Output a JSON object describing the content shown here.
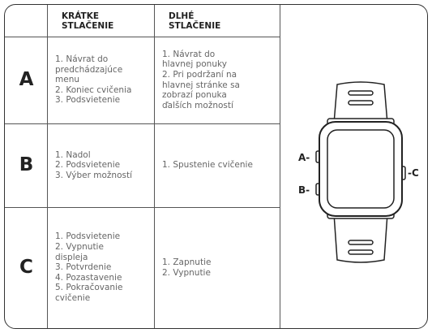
{
  "table": {
    "headers": [
      [
        "KRÁTKE",
        "STLAČENIE"
      ],
      [
        "DLHÉ",
        "STLAČENIE"
      ]
    ],
    "rows": [
      {
        "label": "A",
        "short": [
          "1. Návrat do",
          "predchádzajúce",
          "menu",
          "2. Koniec cvičenia",
          "3. Podsvietenie"
        ],
        "long": [
          "1. Návrat do",
          "hlavnej ponuky",
          "2. Pri podržaní na",
          "hlavnej stránke sa",
          "zobrazí ponuka",
          "ďalších možností"
        ]
      },
      {
        "label": "B",
        "short": [
          "1. Nadol",
          "2. Podsvietenie",
          "3. Výber možností"
        ],
        "long": [
          "1. Spustenie cvičenie"
        ]
      },
      {
        "label": "C",
        "short": [
          "1. Podsvietenie",
          "2. Vypnutie",
          "displeja",
          "3. Potvrdenie",
          "4. Pozastavenie",
          "5. Pokračovanie",
          "cvičenie"
        ],
        "long": [
          "1. Zapnutie",
          "2. Vypnutie"
        ]
      }
    ]
  },
  "diagram": {
    "labels": [
      "A-",
      "B-",
      "-C"
    ]
  }
}
